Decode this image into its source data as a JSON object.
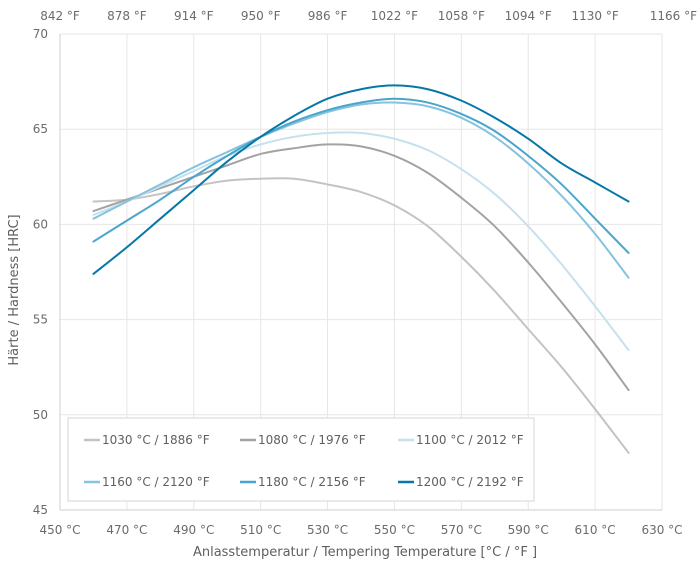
{
  "chart_data": {
    "type": "line",
    "x_label": "Anlasstemperatur / Tempering Temperature  [°C / °F ]",
    "y_label": "Härte / Hardness [HRC]",
    "x_ticks": [
      "450 °C",
      "470 °C",
      "490 °C",
      "510 °C",
      "530 °C",
      "550 °C",
      "570 °C",
      "590 °C",
      "610 °C",
      "630 °C"
    ],
    "x_tick_values": [
      450,
      470,
      490,
      510,
      530,
      550,
      570,
      590,
      610,
      630
    ],
    "x_top_ticks": [
      "842 °F",
      "878 °F",
      "914 °F",
      "950 °F",
      "986 °F",
      "1022 °F",
      "1058 °F",
      "1094 °F",
      "1130 °F",
      "1166 °F"
    ],
    "y_ticks": [
      "45",
      "50",
      "55",
      "60",
      "65",
      "70"
    ],
    "y_tick_values": [
      45,
      50,
      55,
      60,
      65,
      70
    ],
    "xlim": [
      450,
      630
    ],
    "ylim": [
      45,
      70
    ],
    "grid": true,
    "legend_position": "bottom",
    "series": [
      {
        "name": "1030 °C / 1886 °F",
        "color": "#c3c3c3",
        "x": [
          460,
          470,
          480,
          490,
          500,
          510,
          520,
          530,
          540,
          550,
          560,
          570,
          580,
          590,
          600,
          610,
          620
        ],
        "y": [
          61.2,
          61.3,
          61.6,
          62.0,
          62.3,
          62.4,
          62.4,
          62.1,
          61.7,
          61.0,
          59.9,
          58.3,
          56.5,
          54.5,
          52.5,
          50.3,
          48.0
        ]
      },
      {
        "name": "1080 °C / 1976 °F",
        "color": "#a3a3a5",
        "x": [
          460,
          470,
          480,
          490,
          500,
          510,
          520,
          530,
          540,
          550,
          560,
          570,
          580,
          590,
          600,
          610,
          620
        ],
        "y": [
          60.7,
          61.3,
          61.9,
          62.5,
          63.1,
          63.7,
          64.0,
          64.2,
          64.1,
          63.6,
          62.7,
          61.4,
          59.9,
          58.0,
          55.9,
          53.7,
          51.3
        ]
      },
      {
        "name": "1100 °C / 2012 °F",
        "color": "#c6e1ee",
        "x": [
          460,
          470,
          480,
          490,
          500,
          510,
          520,
          530,
          540,
          550,
          560,
          570,
          580,
          590,
          600,
          610,
          620
        ],
        "y": [
          60.5,
          61.2,
          62.0,
          62.8,
          63.6,
          64.2,
          64.6,
          64.8,
          64.8,
          64.5,
          63.9,
          62.9,
          61.6,
          59.9,
          57.9,
          55.7,
          53.4
        ]
      },
      {
        "name": "1160 °C / 2120 °F",
        "color": "#86c3df",
        "x": [
          460,
          470,
          480,
          490,
          500,
          510,
          520,
          530,
          540,
          550,
          560,
          570,
          580,
          590,
          600,
          610,
          620
        ],
        "y": [
          60.3,
          61.2,
          62.1,
          63.0,
          63.8,
          64.6,
          65.3,
          65.9,
          66.3,
          66.4,
          66.2,
          65.6,
          64.6,
          63.2,
          61.5,
          59.5,
          57.2
        ]
      },
      {
        "name": "1180 °C / 2156 °F",
        "color": "#4aa5cd",
        "x": [
          460,
          470,
          480,
          490,
          500,
          510,
          520,
          530,
          540,
          550,
          560,
          570,
          580,
          590,
          600,
          610,
          620
        ],
        "y": [
          59.1,
          60.2,
          61.3,
          62.5,
          63.6,
          64.6,
          65.4,
          66.0,
          66.4,
          66.6,
          66.4,
          65.8,
          64.9,
          63.6,
          62.1,
          60.3,
          58.5
        ]
      },
      {
        "name": "1200 °C / 2192 °F",
        "color": "#0677a7",
        "x": [
          460,
          470,
          480,
          490,
          500,
          510,
          520,
          530,
          540,
          550,
          560,
          570,
          580,
          590,
          600,
          610,
          620
        ],
        "y": [
          57.4,
          58.8,
          60.3,
          61.8,
          63.3,
          64.6,
          65.7,
          66.6,
          67.1,
          67.3,
          67.1,
          66.5,
          65.6,
          64.5,
          63.2,
          62.2,
          61.2
        ]
      }
    ]
  }
}
